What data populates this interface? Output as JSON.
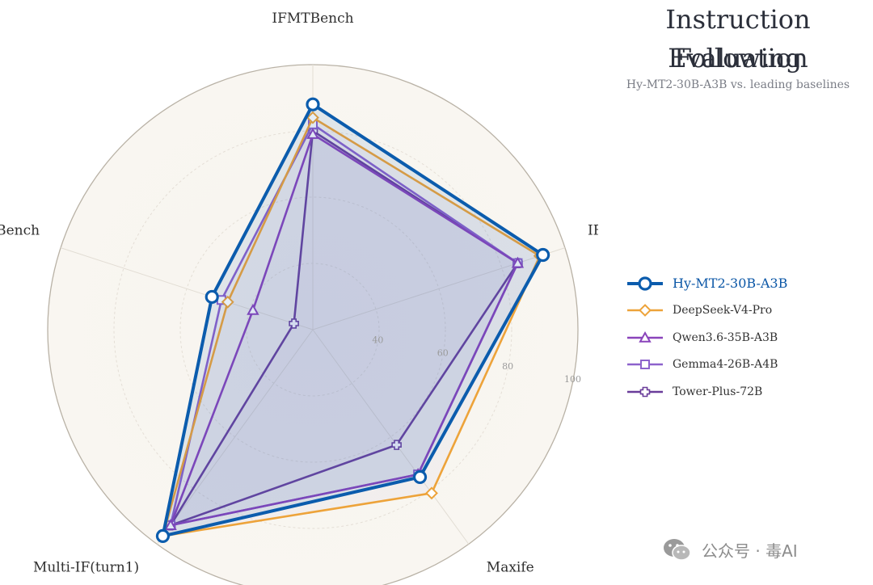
{
  "title_line1": "Instruction Following",
  "title_line2": "Evaluation",
  "subtitle": "Hy-MT2-30B-A3B vs. leading baselines",
  "watermark": "公众号 · 毒AI",
  "chart_data": {
    "type": "radar",
    "axes": [
      "IFMTBench",
      "IFEVAL",
      "Maxife",
      "Multi-IF(turn1)",
      "IFBench"
    ],
    "ticks": [
      40,
      60,
      80,
      100
    ],
    "range": [
      20,
      100
    ],
    "grid": true,
    "legend_position": "right",
    "series": [
      {
        "name": "Hy-MT2-30B-A3B",
        "values": [
          88,
          93,
          75,
          97,
          52
        ],
        "color": "#0b5cad",
        "marker": "circle"
      },
      {
        "name": "DeepSeek-V4-Pro",
        "values": [
          84,
          92,
          81,
          97,
          47
        ],
        "color": "#eda33a",
        "marker": "diamond"
      },
      {
        "name": "Qwen3.6-35B-A3B",
        "values": [
          79,
          85,
          74,
          93,
          39
        ],
        "color": "#8a44bb",
        "marker": "triangle"
      },
      {
        "name": "Gemma4-26B-A4B",
        "values": [
          82,
          85,
          74,
          93,
          49
        ],
        "color": "#8d62cc",
        "marker": "square"
      },
      {
        "name": "Tower-Plus-72B",
        "values": [
          80,
          85,
          63,
          93,
          26
        ],
        "color": "#6a3d9a",
        "marker": "plus"
      }
    ]
  }
}
